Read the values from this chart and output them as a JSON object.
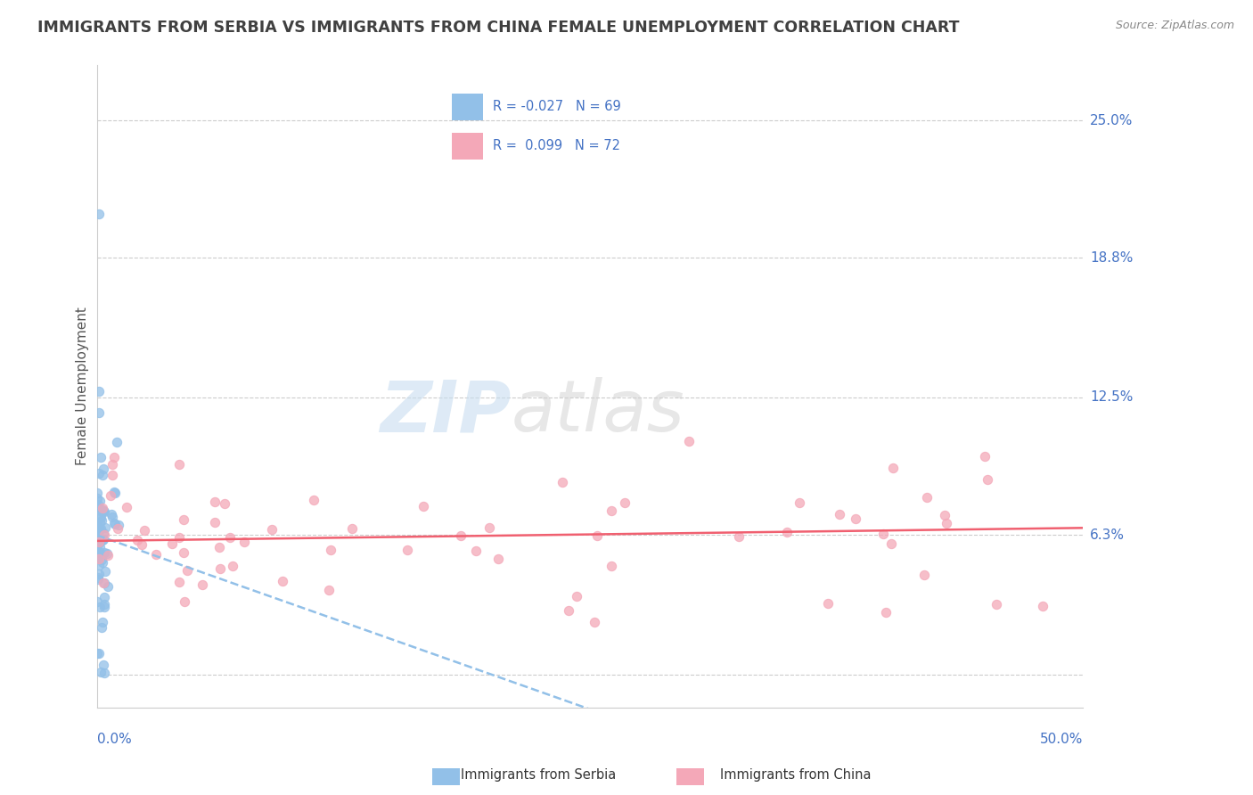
{
  "title": "IMMIGRANTS FROM SERBIA VS IMMIGRANTS FROM CHINA FEMALE UNEMPLOYMENT CORRELATION CHART",
  "source": "Source: ZipAtlas.com",
  "ylabel": "Female Unemployment",
  "ytick_vals": [
    0.0,
    0.063,
    0.125,
    0.188,
    0.25
  ],
  "ytick_labels": [
    "",
    "6.3%",
    "12.5%",
    "18.8%",
    "25.0%"
  ],
  "xmin": 0.0,
  "xmax": 0.5,
  "ymin": -0.015,
  "ymax": 0.275,
  "serbia_color": "#92c0e8",
  "china_color": "#f4a8b8",
  "serbia_line_color": "#92c0e8",
  "china_line_color": "#f06070",
  "tick_label_color": "#4472c4",
  "title_color": "#404040",
  "grid_color": "#cccccc",
  "legend_text_color": "#4472c4",
  "watermark_color": "#d8e8f0",
  "serbia_R": -0.027,
  "serbia_N": 69,
  "china_R": 0.099,
  "china_N": 72
}
